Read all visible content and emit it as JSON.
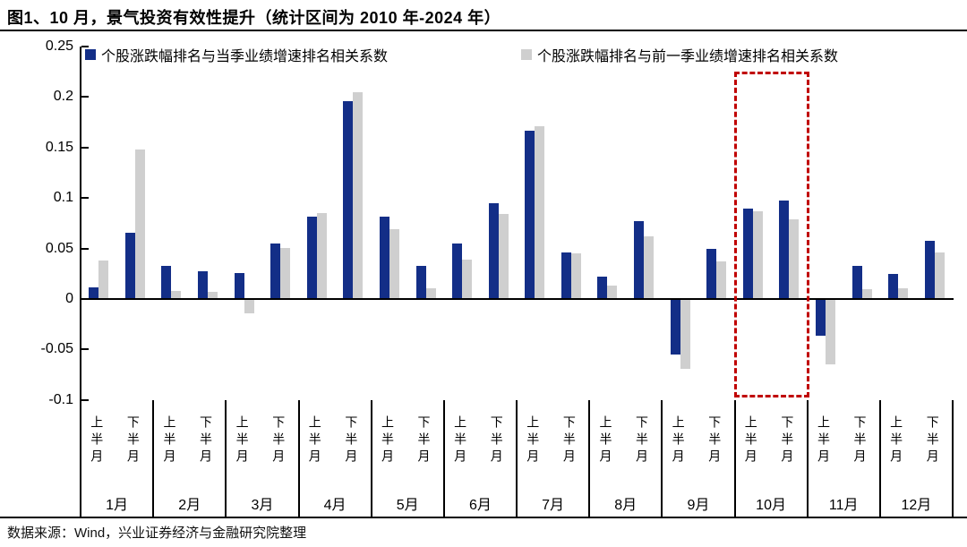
{
  "header": {
    "title": "图1、10 月，景气投资有效性提升（统计区间为 2010 年-2024 年）"
  },
  "footer": {
    "source": "数据来源：Wind，兴业证券经济与金融研究院整理"
  },
  "colors": {
    "series_current_quarter": "#132e87",
    "series_previous_quarter": "#cfcfcf",
    "highlight_box": "#c00000",
    "axis": "#000000",
    "background": "#ffffff"
  },
  "chart_data": {
    "type": "bar",
    "title": "图1、10 月，景气投资有效性提升（统计区间为 2010 年-2024 年）",
    "xlabel": "",
    "ylabel": "",
    "ylim": [
      -0.1,
      0.25
    ],
    "grid": false,
    "legend_position": "top",
    "y_ticks": [
      0.25,
      0.2,
      0.15,
      0.1,
      0.05,
      0,
      -0.05,
      -0.1
    ],
    "y_tick_labels": [
      "0.25",
      "0.2",
      "0.15",
      "0.1",
      "0.05",
      "0",
      "-0.05",
      "-0.1"
    ],
    "months": [
      "1月",
      "2月",
      "3月",
      "4月",
      "5月",
      "6月",
      "7月",
      "8月",
      "9月",
      "10月",
      "11月",
      "12月"
    ],
    "half_labels": [
      "上半月",
      "下半月"
    ],
    "categories": [
      "1月上半月",
      "1月下半月",
      "2月上半月",
      "2月下半月",
      "3月上半月",
      "3月下半月",
      "4月上半月",
      "4月下半月",
      "5月上半月",
      "5月下半月",
      "6月上半月",
      "6月下半月",
      "7月上半月",
      "7月下半月",
      "8月上半月",
      "8月下半月",
      "9月上半月",
      "9月下半月",
      "10月上半月",
      "10月下半月",
      "11月上半月",
      "11月下半月",
      "12月上半月",
      "12月下半月"
    ],
    "series": [
      {
        "name": "个股涨跌幅排名与当季业绩增速排名相关系数",
        "color": "#132e87",
        "values": [
          0.011,
          0.065,
          0.032,
          0.027,
          0.025,
          0.054,
          0.081,
          0.195,
          0.081,
          0.032,
          0.054,
          0.094,
          0.166,
          0.045,
          0.021,
          0.076,
          -0.055,
          0.049,
          0.089,
          0.097,
          -0.036,
          0.032,
          0.024,
          0.057
        ]
      },
      {
        "name": "个股涨跌幅排名与前一季业绩增速排名相关系数",
        "color": "#cfcfcf",
        "values": [
          0.037,
          0.147,
          0.007,
          0.006,
          -0.014,
          0.05,
          0.084,
          0.204,
          0.068,
          0.01,
          0.038,
          0.083,
          0.17,
          0.044,
          0.012,
          0.061,
          -0.069,
          0.036,
          0.086,
          0.078,
          -0.065,
          0.009,
          0.01,
          0.045
        ]
      }
    ],
    "annotations": [
      {
        "type": "dashed-box",
        "label": "10月",
        "color": "#c00000"
      }
    ]
  }
}
